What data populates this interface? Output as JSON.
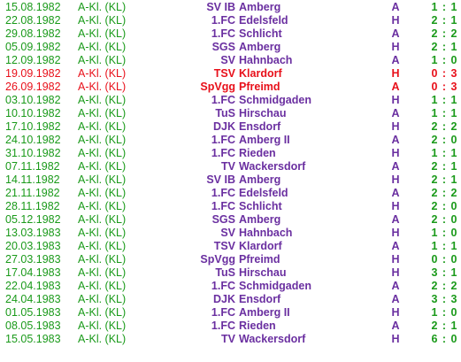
{
  "colors": {
    "date_league_score": "#1a9a1a",
    "team_venue": "#6a2fa0",
    "highlight": "#e8101a",
    "background": "#ffffff"
  },
  "matches": [
    {
      "date": "15.08.1982",
      "league": "A-Kl. (KL)",
      "prefix": "SV IB",
      "club": "Amberg",
      "venue": "A",
      "score": "1 : 1",
      "highlight": false
    },
    {
      "date": "22.08.1982",
      "league": "A-Kl. (KL)",
      "prefix": "1.FC",
      "club": "Edelsfeld",
      "venue": "H",
      "score": "2 : 1",
      "highlight": false
    },
    {
      "date": "29.08.1982",
      "league": "A-Kl. (KL)",
      "prefix": "1.FC",
      "club": "Schlicht",
      "venue": "A",
      "score": "2 : 2",
      "highlight": false
    },
    {
      "date": "05.09.1982",
      "league": "A-Kl. (KL)",
      "prefix": "SGS",
      "club": "Amberg",
      "venue": "H",
      "score": "2 : 1",
      "highlight": false
    },
    {
      "date": "12.09.1982",
      "league": "A-Kl. (KL)",
      "prefix": "SV",
      "club": "Hahnbach",
      "venue": "A",
      "score": "1 : 0",
      "highlight": false
    },
    {
      "date": "19.09.1982",
      "league": "A-Kl. (KL)",
      "prefix": "TSV",
      "club": "Klardorf",
      "venue": "H",
      "score": "0 : 3",
      "highlight": true
    },
    {
      "date": "26.09.1982",
      "league": "A-Kl. (KL)",
      "prefix": "SpVgg",
      "club": "Pfreimd",
      "venue": "A",
      "score": "0 : 3",
      "highlight": true
    },
    {
      "date": "03.10.1982",
      "league": "A-Kl. (KL)",
      "prefix": "1.FC",
      "club": "Schmidgaden",
      "venue": "H",
      "score": "1 : 1",
      "highlight": false
    },
    {
      "date": "10.10.1982",
      "league": "A-Kl. (KL)",
      "prefix": "TuS",
      "club": "Hirschau",
      "venue": "A",
      "score": "1 : 1",
      "highlight": false
    },
    {
      "date": "17.10.1982",
      "league": "A-Kl. (KL)",
      "prefix": "DJK",
      "club": "Ensdorf",
      "venue": "H",
      "score": "2 : 2",
      "highlight": false
    },
    {
      "date": "24.10.1982",
      "league": "A-Kl. (KL)",
      "prefix": "1.FC",
      "club": "Amberg II",
      "venue": "A",
      "score": "2 : 0",
      "highlight": false
    },
    {
      "date": "31.10.1982",
      "league": "A-Kl. (KL)",
      "prefix": "1.FC",
      "club": "Rieden",
      "venue": "H",
      "score": "1 : 1",
      "highlight": false
    },
    {
      "date": "07.11.1982",
      "league": "A-Kl. (KL)",
      "prefix": "TV",
      "club": "Wackersdorf",
      "venue": "A",
      "score": "2 : 1",
      "highlight": false
    },
    {
      "date": "14.11.1982",
      "league": "A-Kl. (KL)",
      "prefix": "SV IB",
      "club": "Amberg",
      "venue": "H",
      "score": "2 : 1",
      "highlight": false
    },
    {
      "date": "21.11.1982",
      "league": "A-Kl. (KL)",
      "prefix": "1.FC",
      "club": "Edelsfeld",
      "venue": "A",
      "score": "2 : 2",
      "highlight": false
    },
    {
      "date": "28.11.1982",
      "league": "A-Kl. (KL)",
      "prefix": "1.FC",
      "club": "Schlicht",
      "venue": "H",
      "score": "2 : 0",
      "highlight": false
    },
    {
      "date": "05.12.1982",
      "league": "A-Kl. (KL)",
      "prefix": "SGS",
      "club": "Amberg",
      "venue": "A",
      "score": "2 : 0",
      "highlight": false
    },
    {
      "date": "13.03.1983",
      "league": "A-Kl. (KL)",
      "prefix": "SV",
      "club": "Hahnbach",
      "venue": "H",
      "score": "1 : 0",
      "highlight": false
    },
    {
      "date": "20.03.1983",
      "league": "A-Kl. (KL)",
      "prefix": "TSV",
      "club": "Klardorf",
      "venue": "A",
      "score": "1 : 1",
      "highlight": false
    },
    {
      "date": "27.03.1983",
      "league": "A-Kl. (KL)",
      "prefix": "SpVgg",
      "club": "Pfreimd",
      "venue": "H",
      "score": "0 : 0",
      "highlight": false
    },
    {
      "date": "17.04.1983",
      "league": "A-Kl. (KL)",
      "prefix": "TuS",
      "club": "Hirschau",
      "venue": "H",
      "score": "3 : 1",
      "highlight": false
    },
    {
      "date": "22.04.1983",
      "league": "A-Kl. (KL)",
      "prefix": "1.FC",
      "club": "Schmidgaden",
      "venue": "A",
      "score": "2 : 2",
      "highlight": false
    },
    {
      "date": "24.04.1983",
      "league": "A-Kl. (KL)",
      "prefix": "DJK",
      "club": "Ensdorf",
      "venue": "A",
      "score": "3 : 3",
      "highlight": false
    },
    {
      "date": "01.05.1983",
      "league": "A-Kl. (KL)",
      "prefix": "1.FC",
      "club": "Amberg II",
      "venue": "H",
      "score": "1 : 0",
      "highlight": false
    },
    {
      "date": "08.05.1983",
      "league": "A-Kl. (KL)",
      "prefix": "1.FC",
      "club": "Rieden",
      "venue": "A",
      "score": "2 : 1",
      "highlight": false
    },
    {
      "date": "15.05.1983",
      "league": "A-Kl. (KL)",
      "prefix": "TV",
      "club": "Wackersdorf",
      "venue": "H",
      "score": "6 : 0",
      "highlight": false
    }
  ]
}
